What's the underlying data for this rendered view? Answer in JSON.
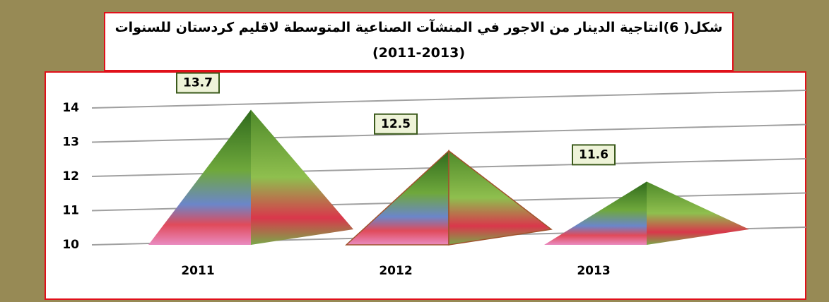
{
  "chart_data": {
    "type": "pyramid",
    "title": "شكل( 6)انتاجية الدينار من الاجور في المنشآت الصناعية المتوسطة لاقليم كردستان  للسنوات (2013-2011)",
    "categories": [
      "2011",
      "2012",
      "2013"
    ],
    "values": [
      13.7,
      12.5,
      11.6
    ],
    "color": "#5a8a2e",
    "ylim": [
      10,
      14
    ],
    "yticks": [
      10,
      11,
      12,
      13,
      14
    ],
    "grid": true
  }
}
